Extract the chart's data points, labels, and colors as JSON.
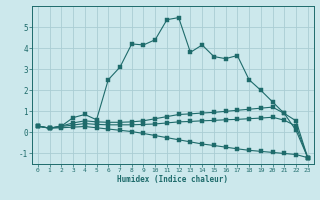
{
  "background_color": "#cce8ec",
  "grid_color": "#aacdd4",
  "line_color": "#1e6b6b",
  "xlabel": "Humidex (Indice chaleur)",
  "xlim": [
    -0.5,
    23.5
  ],
  "ylim": [
    -1.5,
    6.0
  ],
  "yticks": [
    -1,
    0,
    1,
    2,
    3,
    4,
    5
  ],
  "xticks": [
    0,
    1,
    2,
    3,
    4,
    5,
    6,
    7,
    8,
    9,
    10,
    11,
    12,
    13,
    14,
    15,
    16,
    17,
    18,
    19,
    20,
    21,
    22,
    23
  ],
  "curve1_x": [
    0,
    1,
    2,
    3,
    4,
    5,
    6,
    7,
    8,
    9,
    10,
    11,
    12,
    13,
    14,
    15,
    16,
    17,
    18,
    19,
    20,
    21,
    22,
    23
  ],
  "curve1_y": [
    0.3,
    0.2,
    0.3,
    0.7,
    0.85,
    0.6,
    2.5,
    3.1,
    4.2,
    4.15,
    4.4,
    5.35,
    5.45,
    3.8,
    4.15,
    3.6,
    3.5,
    3.65,
    2.5,
    2.0,
    1.45,
    0.9,
    0.1,
    -1.2
  ],
  "curve2_x": [
    0,
    1,
    2,
    3,
    4,
    5,
    6,
    7,
    8,
    9,
    10,
    11,
    12,
    13,
    14,
    15,
    16,
    17,
    18,
    19,
    20,
    21,
    22,
    23
  ],
  "curve2_y": [
    0.3,
    0.2,
    0.3,
    0.45,
    0.55,
    0.5,
    0.48,
    0.48,
    0.5,
    0.55,
    0.65,
    0.75,
    0.85,
    0.88,
    0.92,
    0.95,
    1.0,
    1.05,
    1.1,
    1.15,
    1.2,
    0.9,
    0.55,
    -1.2
  ],
  "curve3_x": [
    0,
    1,
    2,
    3,
    4,
    5,
    6,
    7,
    8,
    9,
    10,
    11,
    12,
    13,
    14,
    15,
    16,
    17,
    18,
    19,
    20,
    21,
    22,
    23
  ],
  "curve3_y": [
    0.3,
    0.2,
    0.28,
    0.35,
    0.42,
    0.38,
    0.36,
    0.36,
    0.36,
    0.38,
    0.4,
    0.45,
    0.5,
    0.52,
    0.55,
    0.57,
    0.6,
    0.62,
    0.65,
    0.68,
    0.72,
    0.58,
    0.3,
    -1.2
  ],
  "curve4_x": [
    0,
    1,
    2,
    3,
    4,
    5,
    6,
    7,
    8,
    9,
    10,
    11,
    12,
    13,
    14,
    15,
    16,
    17,
    18,
    19,
    20,
    21,
    22,
    23
  ],
  "curve4_y": [
    0.3,
    0.2,
    0.22,
    0.25,
    0.28,
    0.22,
    0.16,
    0.1,
    0.04,
    -0.05,
    -0.15,
    -0.25,
    -0.35,
    -0.45,
    -0.55,
    -0.62,
    -0.7,
    -0.78,
    -0.85,
    -0.9,
    -0.95,
    -1.0,
    -1.05,
    -1.2
  ]
}
